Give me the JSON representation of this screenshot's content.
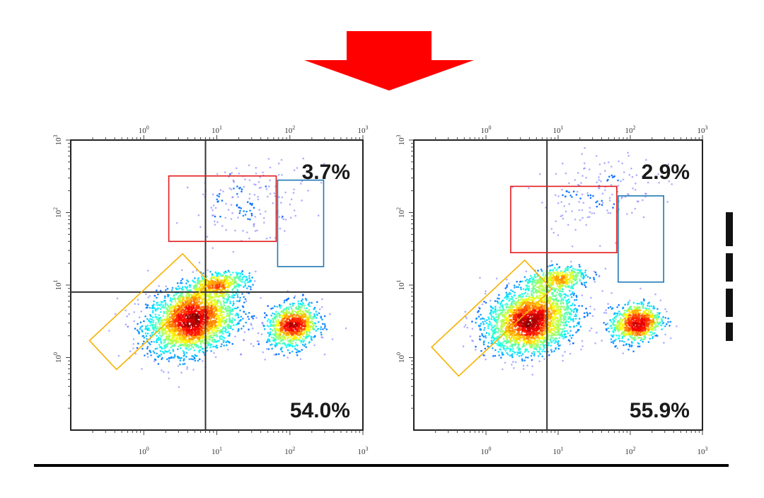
{
  "colors": {
    "arrow": "#ff0000",
    "gate_red": "#e31a1c",
    "gate_blue": "#1f78b4",
    "gate_orange": "#f5b200",
    "frame": "#222222",
    "baseline": "#000000"
  },
  "arrow": {
    "direction": "down",
    "icon": "down-arrow-icon"
  },
  "chart_data": [
    {
      "type": "scatter",
      "subtype": "flow-cytometry-density-dot-plot",
      "title": "",
      "xlabel": "",
      "ylabel": "",
      "x_scale": "log",
      "y_scale": "log",
      "xlim": [
        0.1,
        1000
      ],
      "ylim": [
        0.1,
        1000
      ],
      "x_ticks": [
        "10",
        "10",
        "10",
        "10"
      ],
      "x_tick_exponents": [
        "0",
        "1",
        "2",
        "3"
      ],
      "y_ticks": [
        "10",
        "10",
        "10",
        "10"
      ],
      "y_tick_exponents": [
        "0",
        "1",
        "2",
        "3"
      ],
      "quadrant_x": 7,
      "quadrant_y": 8,
      "annotations": [
        {
          "label": "3.7%",
          "position": "top-right"
        },
        {
          "label": "54.0%",
          "position": "bottom-right"
        }
      ],
      "populations": [
        {
          "center": [
            4.5,
            3.2
          ],
          "spread_log": [
            0.3,
            0.22
          ],
          "count": 2600
        },
        {
          "center": [
            110,
            2.7
          ],
          "spread_log": [
            0.17,
            0.15
          ],
          "count": 1000
        },
        {
          "center": [
            30,
            150
          ],
          "spread_log": [
            0.4,
            0.25
          ],
          "count": 170
        },
        {
          "center": [
            10,
            10
          ],
          "spread_log": [
            0.22,
            0.08
          ],
          "count": 500
        }
      ],
      "gates": [
        {
          "color": "red",
          "shape": "rectangle",
          "x": [
            2.2,
            65
          ],
          "y": [
            40,
            320
          ]
        },
        {
          "color": "blue",
          "shape": "rectangle",
          "x": [
            68,
            290
          ],
          "y": [
            18,
            280
          ]
        },
        {
          "color": "orange",
          "shape": "rotated-rectangle",
          "center": [
            1.2,
            4.3
          ],
          "angle_deg": -43
        }
      ]
    },
    {
      "type": "scatter",
      "subtype": "flow-cytometry-density-dot-plot",
      "title": "",
      "xlabel": "",
      "ylabel": "",
      "x_scale": "log",
      "y_scale": "log",
      "xlim": [
        0.1,
        1000
      ],
      "ylim": [
        0.1,
        1000
      ],
      "x_ticks": [
        "10",
        "10",
        "10",
        "10"
      ],
      "x_tick_exponents": [
        "0",
        "1",
        "2",
        "3"
      ],
      "y_ticks": [
        "10",
        "10",
        "10",
        "10"
      ],
      "y_tick_exponents": [
        "0",
        "1",
        "2",
        "3"
      ],
      "quadrant_x": 7,
      "quadrant_y": null,
      "annotations": [
        {
          "label": "2.9%",
          "position": "top-right"
        },
        {
          "label": "55.9%",
          "position": "bottom-right"
        }
      ],
      "populations": [
        {
          "center": [
            4.2,
            3.2
          ],
          "spread_log": [
            0.3,
            0.22
          ],
          "count": 2500
        },
        {
          "center": [
            120,
            3.0
          ],
          "spread_log": [
            0.17,
            0.13
          ],
          "count": 900
        },
        {
          "center": [
            35,
            200
          ],
          "spread_log": [
            0.4,
            0.25
          ],
          "count": 160
        },
        {
          "center": [
            10,
            12
          ],
          "spread_log": [
            0.22,
            0.08
          ],
          "count": 450
        }
      ],
      "gates": [
        {
          "color": "red",
          "shape": "rectangle",
          "x": [
            2.2,
            65
          ],
          "y": [
            28,
            230
          ]
        },
        {
          "color": "blue",
          "shape": "rectangle",
          "x": [
            68,
            290
          ],
          "y": [
            11,
            170
          ]
        },
        {
          "color": "orange",
          "shape": "rotated-rectangle",
          "center": [
            1.2,
            3.5
          ],
          "angle_deg": -43
        }
      ]
    }
  ]
}
